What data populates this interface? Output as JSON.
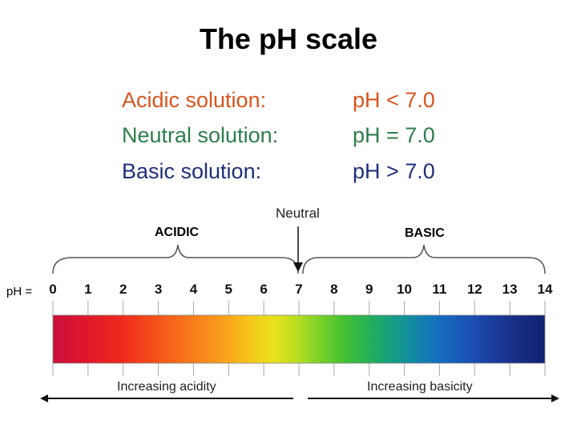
{
  "title": "The pH scale",
  "definitions": [
    {
      "label": "Acidic solution:",
      "value": "pH < 7.0",
      "color": "#d9541e"
    },
    {
      "label": "Neutral solution:",
      "value": "pH = 7.0",
      "color": "#2e7d4a"
    },
    {
      "label": "Basic solution:",
      "value": "pH > 7.0",
      "color": "#1f2f7a"
    }
  ],
  "scale": {
    "neutral_label": "Neutral",
    "acidic_label": "ACIDIC",
    "basic_label": "BASIC",
    "prefix": "pH =",
    "ticks": [
      "0",
      "1",
      "2",
      "3",
      "4",
      "5",
      "6",
      "7",
      "8",
      "9",
      "10",
      "11",
      "12",
      "13",
      "14"
    ],
    "acidity_label": "Increasing acidity",
    "basicity_label": "Increasing basicity"
  }
}
